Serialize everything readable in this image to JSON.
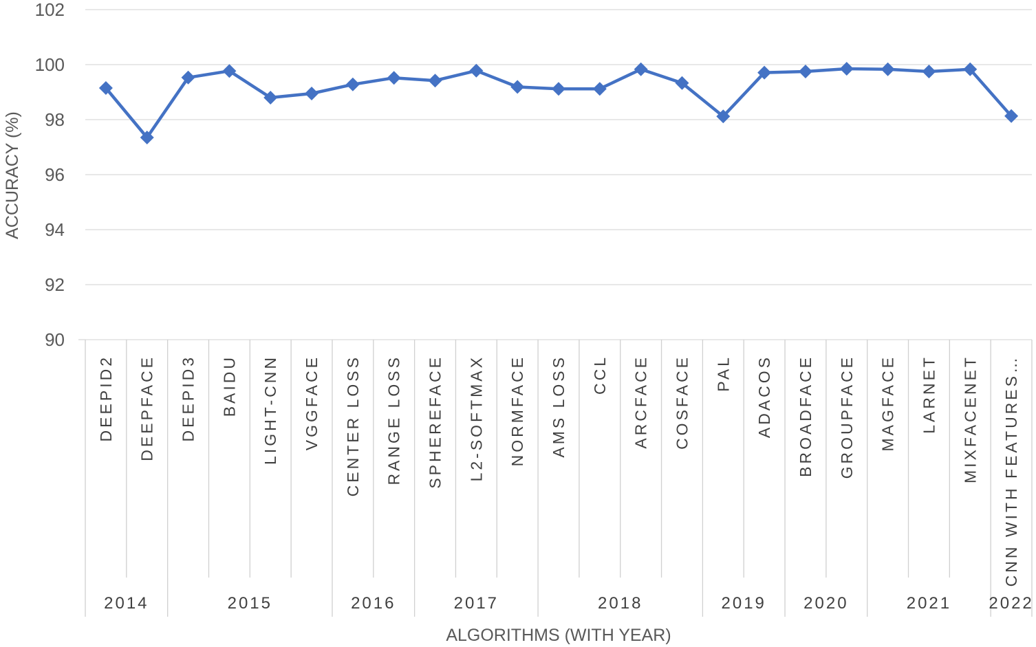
{
  "chart_data": {
    "type": "line",
    "xlabel": "ALGORITHMS (WITH YEAR)",
    "ylabel": "ACCURACY (%)",
    "ylim": [
      90,
      102
    ],
    "yticks": [
      90,
      92,
      94,
      96,
      98,
      100,
      102
    ],
    "grid": true,
    "legend": "none",
    "series_color": "#4472C4",
    "categories": [
      "DEEPID2",
      "DEEPFACE",
      "DEEPID3",
      "BAIDU",
      "LIGHT-CNN",
      "VGGFACE",
      "CENTER LOSS",
      "RANGE LOSS",
      "SPHEREFACE",
      "L2-SOFTMAX",
      "NORMFACE",
      "AMS LOSS",
      "CCL",
      "ARCFACE",
      "COSFACE",
      "PAL",
      "ADACOS",
      "BROADFACE",
      "GROUPFACE",
      "MAGFACE",
      "LARNET",
      "MIXFACENET",
      "CNN WITH FEATURES…"
    ],
    "years": [
      {
        "label": "2014",
        "count": 2
      },
      {
        "label": "2015",
        "count": 4
      },
      {
        "label": "2016",
        "count": 2
      },
      {
        "label": "2017",
        "count": 3
      },
      {
        "label": "2018",
        "count": 4
      },
      {
        "label": "2019",
        "count": 2
      },
      {
        "label": "2020",
        "count": 2
      },
      {
        "label": "2021",
        "count": 3
      },
      {
        "label": "2022",
        "count": 1
      }
    ],
    "series": [
      {
        "values": [
          99.15,
          97.35,
          99.53,
          99.77,
          98.8,
          98.95,
          99.28,
          99.52,
          99.42,
          99.78,
          99.19,
          99.12,
          99.12,
          99.83,
          99.33,
          98.12,
          99.71,
          99.75,
          99.85,
          99.83,
          99.75,
          99.83,
          98.13
        ]
      }
    ]
  }
}
